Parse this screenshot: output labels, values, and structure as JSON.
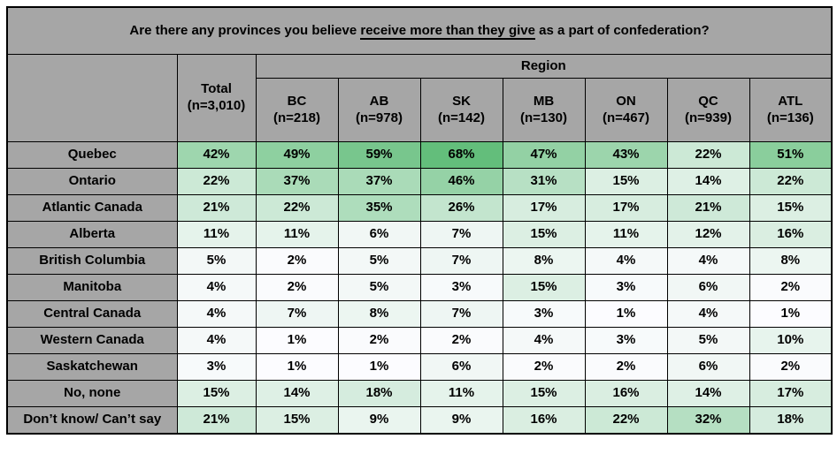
{
  "title": {
    "prefix": "Are there any provinces you believe ",
    "underlined": "receive more than they give",
    "suffix": " as a part of confederation?"
  },
  "chart_data": {
    "type": "table",
    "title": "Are there any provinces you believe receive more than they give as a part of confederation?",
    "column_group_label": "Region",
    "columns": [
      {
        "label": "Total",
        "n_label": "(n=3,010)",
        "in_region_group": false
      },
      {
        "label": "BC",
        "n_label": "(n=218)",
        "in_region_group": true
      },
      {
        "label": "AB",
        "n_label": "(n=978)",
        "in_region_group": true
      },
      {
        "label": "SK",
        "n_label": "(n=142)",
        "in_region_group": true
      },
      {
        "label": "MB",
        "n_label": "(n=130)",
        "in_region_group": true
      },
      {
        "label": "ON",
        "n_label": "(n=467)",
        "in_region_group": true
      },
      {
        "label": "QC",
        "n_label": "(n=939)",
        "in_region_group": true
      },
      {
        "label": "ATL",
        "n_label": "(n=136)",
        "in_region_group": true
      }
    ],
    "value_format": "percent",
    "rows": [
      {
        "label": "Quebec",
        "values_pct": [
          42,
          49,
          59,
          68,
          47,
          43,
          22,
          51
        ]
      },
      {
        "label": "Ontario",
        "values_pct": [
          22,
          37,
          37,
          46,
          31,
          15,
          14,
          22
        ]
      },
      {
        "label": "Atlantic Canada",
        "values_pct": [
          21,
          22,
          35,
          26,
          17,
          17,
          21,
          15
        ]
      },
      {
        "label": "Alberta",
        "values_pct": [
          11,
          11,
          6,
          7,
          15,
          11,
          12,
          16
        ]
      },
      {
        "label": "British Columbia",
        "values_pct": [
          5,
          2,
          5,
          7,
          8,
          4,
          4,
          8
        ]
      },
      {
        "label": "Manitoba",
        "values_pct": [
          4,
          2,
          5,
          3,
          15,
          3,
          6,
          2
        ]
      },
      {
        "label": "Central Canada",
        "values_pct": [
          4,
          7,
          8,
          7,
          3,
          1,
          4,
          1
        ]
      },
      {
        "label": "Western Canada",
        "values_pct": [
          4,
          1,
          2,
          2,
          4,
          3,
          5,
          10
        ]
      },
      {
        "label": "Saskatchewan",
        "values_pct": [
          3,
          1,
          1,
          6,
          2,
          2,
          6,
          2
        ]
      },
      {
        "label": "No, none",
        "values_pct": [
          15,
          14,
          18,
          11,
          15,
          16,
          14,
          17
        ]
      },
      {
        "label": "Don’t know/ Can’t say",
        "values_pct": [
          21,
          15,
          9,
          9,
          16,
          22,
          32,
          18
        ]
      }
    ],
    "heatmap": {
      "min_value": 1,
      "max_value": 68,
      "min_color": "#FCFCFF",
      "max_color": "#63BE7B"
    }
  },
  "colors": {
    "header_bg": "#A6A6A6",
    "border": "#000000",
    "text": "#000000",
    "background": "#FFFFFF"
  }
}
